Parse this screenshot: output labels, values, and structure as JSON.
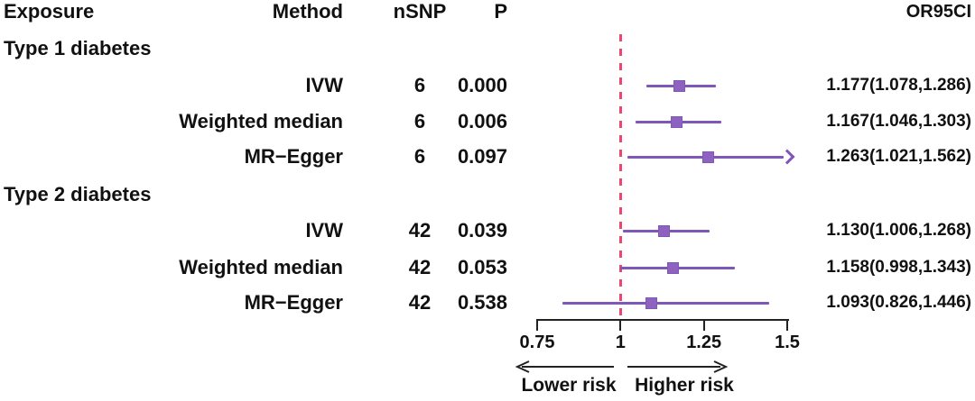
{
  "header": {
    "exposure": "Exposure",
    "method": "Method",
    "nsnp": "nSNP",
    "p": "P",
    "or95ci": "OR95CI"
  },
  "chart_data": {
    "type": "scatter",
    "variant": "forest-plot",
    "title": "",
    "xlabel": "",
    "xlim": [
      0.75,
      1.5
    ],
    "reference_line": 1,
    "x_ticks": [
      {
        "value": 0.75,
        "label": "0.75"
      },
      {
        "value": 1,
        "label": "1"
      },
      {
        "value": 1.25,
        "label": "1.25"
      },
      {
        "value": 1.5,
        "label": "1.5"
      }
    ],
    "direction_labels": {
      "lower": "Lower risk",
      "higher": "Higher risk"
    },
    "rows": [
      {
        "kind": "group",
        "label": "Type 1 diabetes"
      },
      {
        "kind": "data",
        "method": "IVW",
        "nsnp": "6",
        "p": "0.000",
        "or95ci": "1.177(1.078,1.286)",
        "or": 1.177,
        "lo": 1.078,
        "hi": 1.286
      },
      {
        "kind": "data",
        "method": "Weighted median",
        "nsnp": "6",
        "p": "0.006",
        "or95ci": "1.167(1.046,1.303)",
        "or": 1.167,
        "lo": 1.046,
        "hi": 1.303
      },
      {
        "kind": "data",
        "method": "MR−Egger",
        "nsnp": "6",
        "p": "0.097",
        "or95ci": "1.263(1.021,1.562)",
        "or": 1.263,
        "lo": 1.021,
        "hi": 1.562
      },
      {
        "kind": "group",
        "label": "Type 2 diabetes"
      },
      {
        "kind": "data",
        "method": "IVW",
        "nsnp": "42",
        "p": "0.039",
        "or95ci": "1.130(1.006,1.268)",
        "or": 1.13,
        "lo": 1.006,
        "hi": 1.268
      },
      {
        "kind": "data",
        "method": "Weighted median",
        "nsnp": "42",
        "p": "0.053",
        "or95ci": "1.158(0.998,1.343)",
        "or": 1.158,
        "lo": 0.998,
        "hi": 1.343
      },
      {
        "kind": "data",
        "method": "MR−Egger",
        "nsnp": "42",
        "p": "0.538",
        "or95ci": "1.093(0.826,1.446)",
        "or": 1.093,
        "lo": 0.826,
        "hi": 1.446
      }
    ],
    "colors": {
      "marker": "#8d63bf",
      "ci_line": "#7e57b8",
      "reference_line": "#e8476f",
      "axis": "#222222",
      "text": "#111111"
    }
  }
}
